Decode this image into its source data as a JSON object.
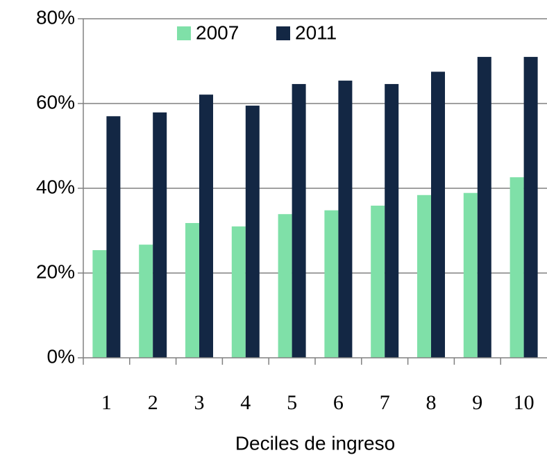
{
  "chart_data": {
    "type": "bar",
    "x_label": "Deciles de ingreso",
    "categories": [
      "1",
      "2",
      "3",
      "4",
      "5",
      "6",
      "7",
      "8",
      "9",
      "10"
    ],
    "series": [
      {
        "name": "2007",
        "color": "#7fe0a8",
        "values": [
          25.4,
          26.7,
          31.8,
          31,
          33.9,
          34.8,
          35.9,
          38.4,
          38.9,
          42.6
        ]
      },
      {
        "name": "2011",
        "color": "#132744",
        "values": [
          57,
          57.9,
          62.1,
          59.5,
          64.6,
          65.4,
          64.6,
          67.5,
          71,
          71
        ]
      }
    ],
    "ylim": [
      0,
      80
    ],
    "yticks": [
      {
        "value": 0,
        "label": "0%"
      },
      {
        "value": 20,
        "label": "20%"
      },
      {
        "value": 40,
        "label": "40%"
      },
      {
        "value": 60,
        "label": "60%"
      },
      {
        "value": 80,
        "label": "80%"
      }
    ],
    "grid": true,
    "legend": "top"
  }
}
